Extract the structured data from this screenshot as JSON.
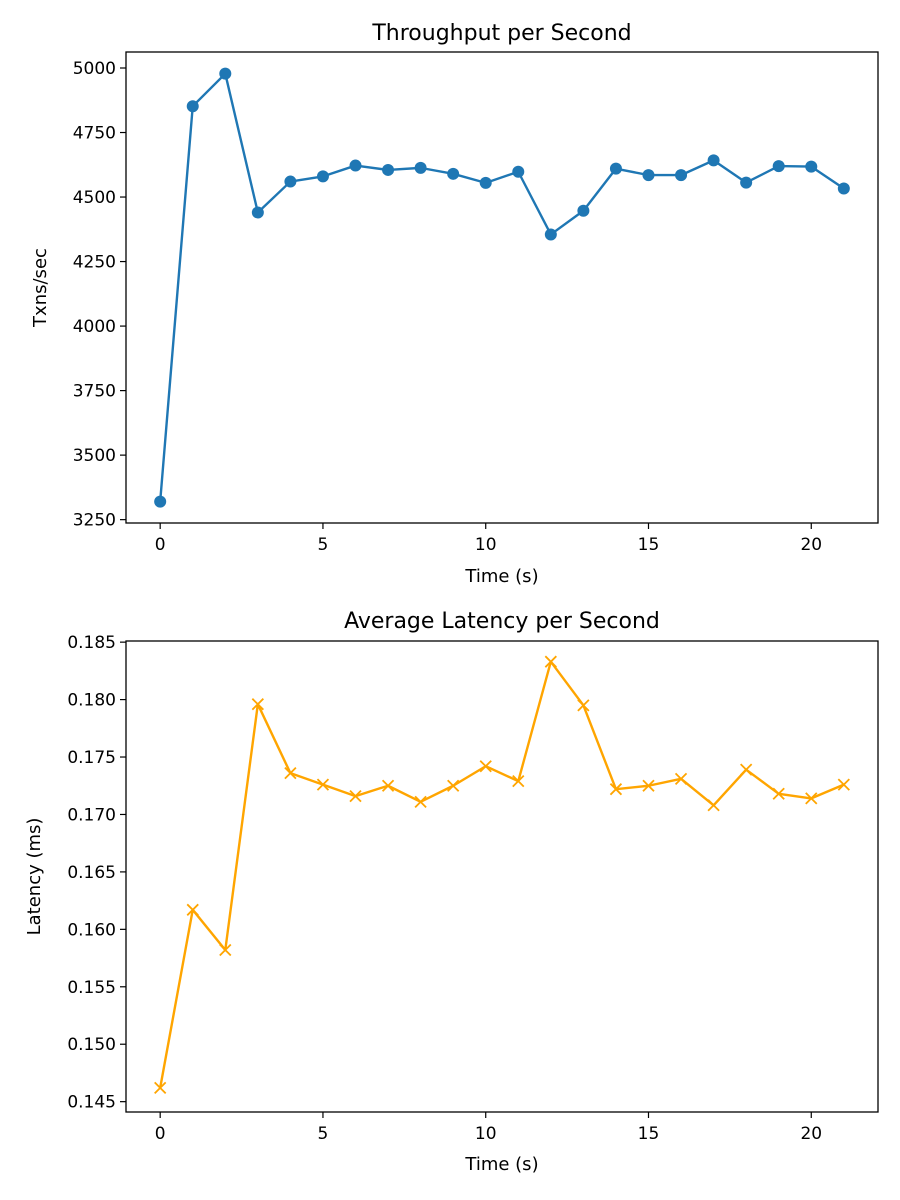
{
  "chart_data": [
    {
      "type": "line",
      "title": "Throughput per Second",
      "xlabel": "Time (s)",
      "ylabel": "Txns/sec",
      "xlim": [
        -1.05,
        22.05
      ],
      "ylim": [
        3237,
        5062
      ],
      "xticks": [
        0,
        5,
        10,
        15,
        20
      ],
      "xtick_labels": [
        "0",
        "5",
        "10",
        "15",
        "20"
      ],
      "yticks": [
        3250,
        3500,
        3750,
        4000,
        4250,
        4500,
        4750,
        5000
      ],
      "ytick_labels": [
        "3250",
        "3500",
        "3750",
        "4000",
        "4250",
        "4500",
        "4750",
        "5000"
      ],
      "grid": false,
      "legend": "none",
      "series": [
        {
          "color": "#1f77b4",
          "marker": "circle",
          "x": [
            0,
            1,
            2,
            3,
            4,
            5,
            6,
            7,
            8,
            9,
            10,
            11,
            12,
            13,
            14,
            15,
            16,
            17,
            18,
            19,
            20,
            21
          ],
          "values": [
            3320,
            4852,
            4978,
            4440,
            4560,
            4580,
            4622,
            4605,
            4613,
            4590,
            4555,
            4598,
            4355,
            4447,
            4610,
            4585,
            4585,
            4642,
            4556,
            4620,
            4618,
            4533
          ]
        }
      ]
    },
    {
      "type": "line",
      "title": "Average Latency per Second",
      "xlabel": "Time (s)",
      "ylabel": "Latency (ms)",
      "xlim": [
        -1.05,
        22.05
      ],
      "ylim": [
        0.1441,
        0.1851
      ],
      "xticks": [
        0,
        5,
        10,
        15,
        20
      ],
      "xtick_labels": [
        "0",
        "5",
        "10",
        "15",
        "20"
      ],
      "yticks": [
        0.145,
        0.15,
        0.155,
        0.16,
        0.165,
        0.17,
        0.175,
        0.18,
        0.185
      ],
      "ytick_labels": [
        "0.145",
        "0.150",
        "0.155",
        "0.160",
        "0.165",
        "0.170",
        "0.175",
        "0.180",
        "0.185"
      ],
      "grid": false,
      "legend": "none",
      "series": [
        {
          "color": "#ffa500",
          "marker": "x",
          "x": [
            0,
            1,
            2,
            3,
            4,
            5,
            6,
            7,
            8,
            9,
            10,
            11,
            12,
            13,
            14,
            15,
            16,
            17,
            18,
            19,
            20,
            21
          ],
          "values": [
            0.1462,
            0.1617,
            0.1582,
            0.1796,
            0.1736,
            0.1726,
            0.1716,
            0.1725,
            0.1711,
            0.1725,
            0.1742,
            0.1729,
            0.1833,
            0.1795,
            0.1722,
            0.1725,
            0.1731,
            0.1708,
            0.1739,
            0.1718,
            0.1714,
            0.1726
          ]
        }
      ]
    }
  ]
}
